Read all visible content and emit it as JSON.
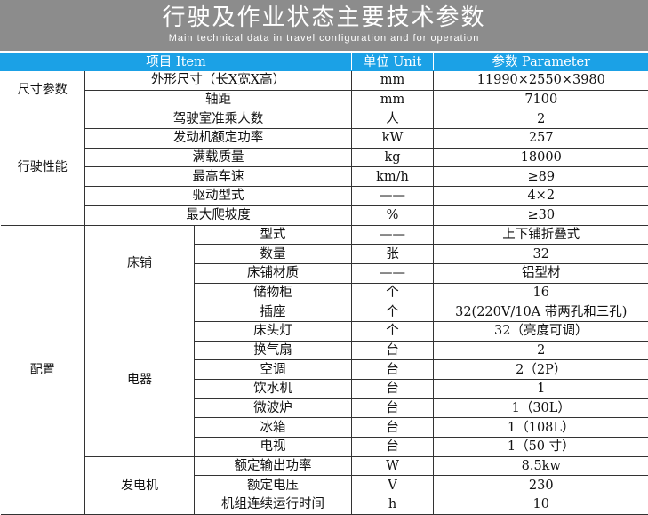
{
  "header": {
    "title": "行驶及作业状态主要技术参数",
    "subtitle": "Main technical data in travel configuration and for operation"
  },
  "columns": [
    "项目 Item",
    "单位 Unit",
    "参数 Parameter"
  ],
  "colors": {
    "header_bg": "#8c8c8c",
    "column_header_bg": "#1ba1e6"
  },
  "groups": [
    {
      "name": "尺寸参数",
      "rows": [
        {
          "item": "外形尺寸（长X宽X高）",
          "unit": "mm",
          "value": "11990×2550×3980"
        },
        {
          "item": "轴距",
          "unit": "mm",
          "value": "7100"
        }
      ]
    },
    {
      "name": "行驶性能",
      "rows": [
        {
          "item": "驾驶室准乘人数",
          "unit": "人",
          "value": "2"
        },
        {
          "item": "发动机额定功率",
          "unit": "kW",
          "value": "257"
        },
        {
          "item": "满载质量",
          "unit": "kg",
          "value": "18000"
        },
        {
          "item": "最高车速",
          "unit": "km/h",
          "value": "≥89"
        },
        {
          "item": "驱动型式",
          "unit": "——",
          "value": "4×2"
        },
        {
          "item": "最大爬坡度",
          "unit": "%",
          "value": "≥30"
        }
      ]
    },
    {
      "name": "配置",
      "subgroups": [
        {
          "name": "床铺",
          "rows": [
            {
              "item": "型式",
              "unit": "——",
              "value": "上下铺折叠式"
            },
            {
              "item": "数量",
              "unit": "张",
              "value": "32"
            },
            {
              "item": "床铺材质",
              "unit": "——",
              "value": "铝型材"
            },
            {
              "item": "储物柜",
              "unit": "个",
              "value": "16"
            }
          ]
        },
        {
          "name": "电器",
          "rows": [
            {
              "item": "插座",
              "unit": "个",
              "value": "32(220V/10A 带两孔和三孔)"
            },
            {
              "item": "床头灯",
              "unit": "个",
              "value": "32（亮度可调）"
            },
            {
              "item": "换气扇",
              "unit": "台",
              "value": "2"
            },
            {
              "item": "空调",
              "unit": "台",
              "value": "2（2P）"
            },
            {
              "item": "饮水机",
              "unit": "台",
              "value": "1"
            },
            {
              "item": "微波炉",
              "unit": "台",
              "value": "1（30L）"
            },
            {
              "item": "冰箱",
              "unit": "台",
              "value": "1（108L）"
            },
            {
              "item": "电视",
              "unit": "台",
              "value": "1（50 寸）"
            }
          ]
        },
        {
          "name": "发电机",
          "rows": [
            {
              "item": "额定输出功率",
              "unit": "W",
              "value": "8.5kw"
            },
            {
              "item": "额定电压",
              "unit": "V",
              "value": "230"
            },
            {
              "item": "机组连续运行时间",
              "unit": "h",
              "value": "10"
            }
          ]
        }
      ]
    }
  ]
}
